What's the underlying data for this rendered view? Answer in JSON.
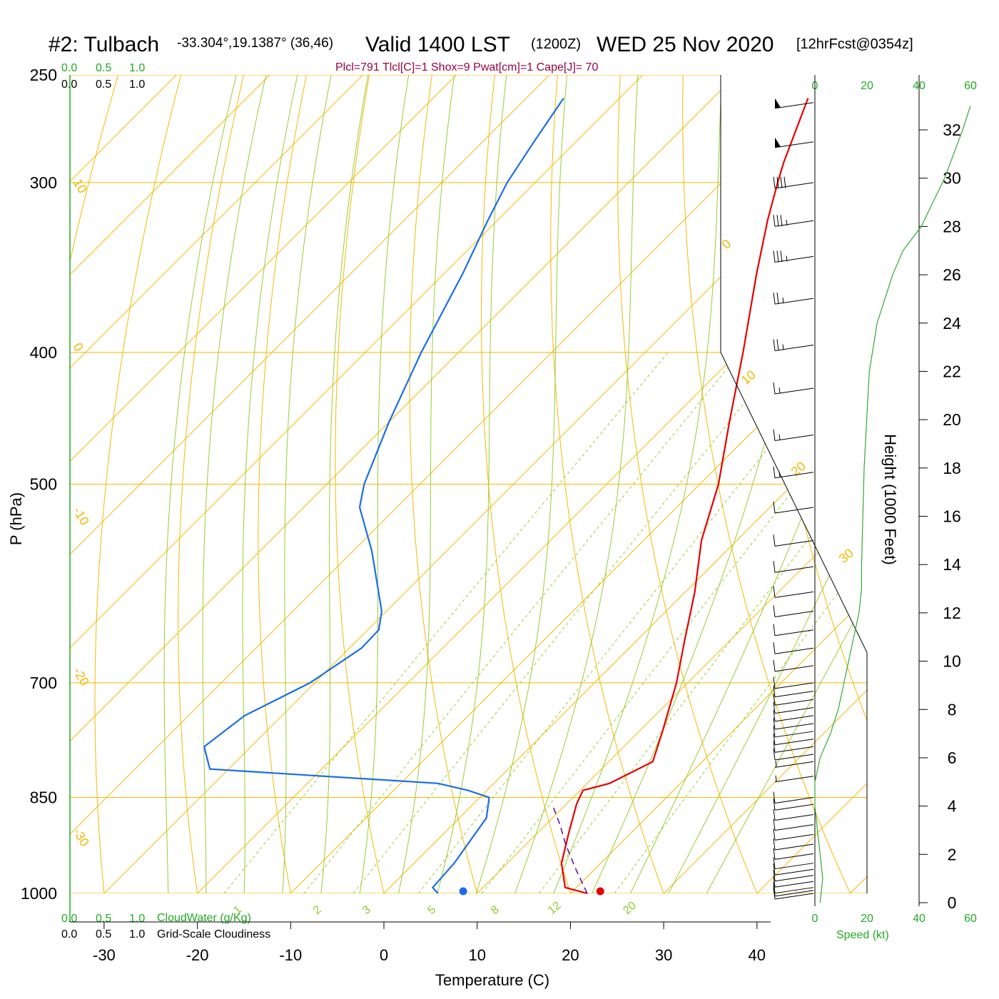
{
  "header": {
    "station": "#2: Tulbach",
    "coords": "-33.304°,19.1387° (36,46)",
    "valid": "Valid 1400 LST",
    "utc": "(1200Z)",
    "date": "WED 25 Nov 2020",
    "forecast": "[12hrFcst@0354z]",
    "params": "Plcl=791 Tlcl[C]=1 Shox=9 Pwat[cm]=1 Cape[J]= 70"
  },
  "scale_labels": {
    "top_green": [
      "0.0",
      "0.5",
      "1.0"
    ],
    "top_black": [
      "0.0",
      "0.5",
      "1.0"
    ],
    "bottom_green": [
      "0.0",
      "0.5",
      "1.0"
    ],
    "bottom_black": [
      "0.0",
      "0.5",
      "1.0"
    ],
    "cloudwater": "CloudWater (g/Kg)",
    "cloudiness": "Grid-Scale Cloudiness",
    "speed_ticks": [
      "0",
      "20",
      "40",
      "60"
    ],
    "speed_label": "Speed (kt)"
  },
  "colors": {
    "temperature": "#e60000",
    "dewpoint": "#1a6ee6",
    "isotherm": "#f5b800",
    "dry_adiabat": "#f5b800",
    "moist_adiabat": "#99cc33",
    "mixing_ratio": "#99cc33",
    "parcel": "#660099",
    "wind_speed": "#33aa33",
    "axis_green": "#22aa22"
  },
  "chart_data": {
    "type": "line",
    "subtype": "skew-t log-p sounding",
    "xlabel": "Temperature (C)",
    "ylabel": "P (hPa)",
    "y2label": "Height (1000 Feet)",
    "x_ticks": [
      -30,
      -20,
      -10,
      0,
      10,
      20,
      30,
      40
    ],
    "p_ticks": [
      250,
      300,
      400,
      500,
      700,
      850,
      1000
    ],
    "height_ticks": [
      0,
      2,
      4,
      6,
      8,
      10,
      12,
      14,
      16,
      18,
      20,
      22,
      24,
      26,
      28,
      30,
      32
    ],
    "xlim_bottom": [
      -33,
      36
    ],
    "plim": [
      1000,
      250
    ],
    "isotherm_labels": [
      "10",
      "0",
      "-10",
      "-20",
      "-30",
      "0",
      "10",
      "20",
      "30"
    ],
    "mixing_ratio_labels": [
      "1",
      "2",
      "3",
      "5",
      "8",
      "12",
      "20"
    ],
    "mixing_ratios": [
      1,
      2,
      3,
      5,
      8,
      12,
      20
    ],
    "series": [
      {
        "name": "temperature",
        "points": [
          {
            "p": 1000,
            "t": 21.8
          },
          {
            "p": 990,
            "t": 18.8
          },
          {
            "p": 950,
            "t": 15.8
          },
          {
            "p": 900,
            "t": 13.2
          },
          {
            "p": 860,
            "t": 11.1
          },
          {
            "p": 840,
            "t": 10.3
          },
          {
            "p": 830,
            "t": 12.4
          },
          {
            "p": 800,
            "t": 14.7
          },
          {
            "p": 760,
            "t": 12.5
          },
          {
            "p": 700,
            "t": 8.8
          },
          {
            "p": 650,
            "t": 5.0
          },
          {
            "p": 600,
            "t": 1.0
          },
          {
            "p": 550,
            "t": -3.8
          },
          {
            "p": 500,
            "t": -8.0
          },
          {
            "p": 450,
            "t": -13.5
          },
          {
            "p": 400,
            "t": -19.5
          },
          {
            "p": 350,
            "t": -26.5
          },
          {
            "p": 320,
            "t": -31.0
          },
          {
            "p": 300,
            "t": -34.0
          },
          {
            "p": 290,
            "t": -35.5
          },
          {
            "p": 260,
            "t": -39.8
          }
        ]
      },
      {
        "name": "dewpoint",
        "points": [
          {
            "p": 1000,
            "t": 5.8
          },
          {
            "p": 990,
            "t": 4.6
          },
          {
            "p": 950,
            "t": 4.3
          },
          {
            "p": 880,
            "t": 2.9
          },
          {
            "p": 850,
            "t": 1.0
          },
          {
            "p": 840,
            "t": -2.0
          },
          {
            "p": 830,
            "t": -6.0
          },
          {
            "p": 810,
            "t": -32.0
          },
          {
            "p": 780,
            "t": -35.0
          },
          {
            "p": 740,
            "t": -34.0
          },
          {
            "p": 700,
            "t": -30.5
          },
          {
            "p": 660,
            "t": -28.7
          },
          {
            "p": 640,
            "t": -28.8
          },
          {
            "p": 620,
            "t": -30.5
          },
          {
            "p": 560,
            "t": -38.0
          },
          {
            "p": 520,
            "t": -44.0
          },
          {
            "p": 500,
            "t": -46.0
          },
          {
            "p": 450,
            "t": -50.0
          },
          {
            "p": 400,
            "t": -54.0
          },
          {
            "p": 350,
            "t": -58.0
          },
          {
            "p": 320,
            "t": -61.0
          },
          {
            "p": 300,
            "t": -63.0
          },
          {
            "p": 280,
            "t": -64.5
          },
          {
            "p": 260,
            "t": -66.0
          }
        ]
      },
      {
        "name": "parcel",
        "points": [
          {
            "p": 1000,
            "t": 21.8
          },
          {
            "p": 960,
            "t": 18.0
          },
          {
            "p": 920,
            "t": 14.2
          },
          {
            "p": 890,
            "t": 11.5
          },
          {
            "p": 860,
            "t": 8.5
          }
        ]
      }
    ],
    "surface_markers": {
      "temperature": 23.2,
      "dewpoint": 8.5
    },
    "wind_speed_profile": [
      {
        "z": 0,
        "kt": 2
      },
      {
        "z": 1,
        "kt": 3
      },
      {
        "z": 2,
        "kt": 2
      },
      {
        "z": 3,
        "kt": 1
      },
      {
        "z": 4,
        "kt": 0
      },
      {
        "z": 5,
        "kt": 0
      },
      {
        "z": 5.5,
        "kt": 1
      },
      {
        "z": 6,
        "kt": 2
      },
      {
        "z": 7,
        "kt": 6
      },
      {
        "z": 8,
        "kt": 9
      },
      {
        "z": 9,
        "kt": 11
      },
      {
        "z": 10,
        "kt": 13
      },
      {
        "z": 11,
        "kt": 15
      },
      {
        "z": 12,
        "kt": 17
      },
      {
        "z": 13,
        "kt": 18
      },
      {
        "z": 14,
        "kt": 18
      },
      {
        "z": 18,
        "kt": 19
      },
      {
        "z": 22,
        "kt": 21
      },
      {
        "z": 24,
        "kt": 24
      },
      {
        "z": 26,
        "kt": 30
      },
      {
        "z": 27,
        "kt": 34
      },
      {
        "z": 28,
        "kt": 41
      },
      {
        "z": 30,
        "kt": 50
      },
      {
        "z": 32,
        "kt": 57
      },
      {
        "z": 33,
        "kt": 60
      }
    ],
    "wind_barbs": [
      {
        "p": 1000,
        "kt": 10
      },
      {
        "p": 995,
        "kt": 10
      },
      {
        "p": 990,
        "kt": 10
      },
      {
        "p": 980,
        "kt": 10
      },
      {
        "p": 970,
        "kt": 10
      },
      {
        "p": 960,
        "kt": 10
      },
      {
        "p": 950,
        "kt": 10
      },
      {
        "p": 935,
        "kt": 10
      },
      {
        "p": 920,
        "kt": 10
      },
      {
        "p": 905,
        "kt": 10
      },
      {
        "p": 890,
        "kt": 10
      },
      {
        "p": 875,
        "kt": 10
      },
      {
        "p": 860,
        "kt": 10
      },
      {
        "p": 850,
        "kt": 10
      },
      {
        "p": 820,
        "kt": 5
      },
      {
        "p": 800,
        "kt": 5
      },
      {
        "p": 790,
        "kt": 10
      },
      {
        "p": 780,
        "kt": 10
      },
      {
        "p": 770,
        "kt": 10
      },
      {
        "p": 760,
        "kt": 10
      },
      {
        "p": 750,
        "kt": 10
      },
      {
        "p": 740,
        "kt": 10
      },
      {
        "p": 730,
        "kt": 10
      },
      {
        "p": 720,
        "kt": 10
      },
      {
        "p": 710,
        "kt": 10
      },
      {
        "p": 700,
        "kt": 10
      },
      {
        "p": 680,
        "kt": 10
      },
      {
        "p": 660,
        "kt": 10
      },
      {
        "p": 640,
        "kt": 10
      },
      {
        "p": 620,
        "kt": 10
      },
      {
        "p": 600,
        "kt": 10
      },
      {
        "p": 575,
        "kt": 10
      },
      {
        "p": 550,
        "kt": 10
      },
      {
        "p": 520,
        "kt": 10
      },
      {
        "p": 490,
        "kt": 15
      },
      {
        "p": 460,
        "kt": 15
      },
      {
        "p": 425,
        "kt": 15
      },
      {
        "p": 395,
        "kt": 25
      },
      {
        "p": 365,
        "kt": 25
      },
      {
        "p": 340,
        "kt": 35
      },
      {
        "p": 320,
        "kt": 35
      },
      {
        "p": 300,
        "kt": 40
      },
      {
        "p": 280,
        "kt": 50
      },
      {
        "p": 262,
        "kt": 50
      }
    ]
  }
}
